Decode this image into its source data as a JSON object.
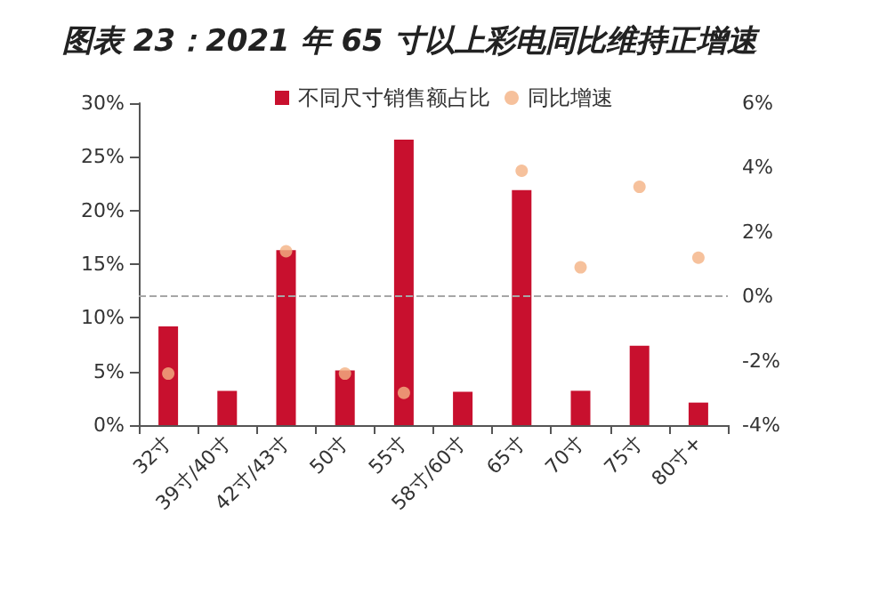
{
  "chart_data": {
    "type": "bar",
    "title": "图表 23：2021 年 65 寸以上彩电同比维持正增速",
    "categories": [
      "32寸",
      "39寸/40寸",
      "42寸/43寸",
      "50寸",
      "55寸",
      "58寸/60寸",
      "65寸",
      "70寸",
      "75寸",
      "80寸+"
    ],
    "series": [
      {
        "name": "不同尺寸销售额占比",
        "color": "#c8102e",
        "values": [
          9.2,
          3.2,
          16.3,
          5.1,
          26.6,
          3.1,
          21.9,
          3.2,
          7.4,
          2.1
        ]
      },
      {
        "name": "同比增速",
        "type": "scatter",
        "axis": "y2",
        "color": "#f4b183",
        "marker": "circle",
        "values": [
          -2.4,
          null,
          1.4,
          -2.4,
          -3.0,
          null,
          3.9,
          0.9,
          3.4,
          1.2
        ]
      }
    ],
    "ylim": [
      0,
      30
    ],
    "yticks": [
      {
        "value": 0,
        "label": "0%"
      },
      {
        "value": 5,
        "label": "5%"
      },
      {
        "value": 10,
        "label": "10%"
      },
      {
        "value": 15,
        "label": "15%"
      },
      {
        "value": 20,
        "label": "20%"
      },
      {
        "value": 25,
        "label": "25%"
      },
      {
        "value": 30,
        "label": "30%"
      }
    ],
    "y2lim": [
      -4,
      6
    ],
    "y2ticks": [
      {
        "value": -4,
        "label": "-4%"
      },
      {
        "value": -2,
        "label": "-2%"
      },
      {
        "value": 0,
        "label": "0%"
      },
      {
        "value": 2,
        "label": "2%"
      },
      {
        "value": 4,
        "label": "4%"
      },
      {
        "value": 6,
        "label": "6%"
      }
    ],
    "ref_lines": [
      {
        "axis": "y2",
        "value": 0,
        "color": "#a6a6a6",
        "line_style": "dashed"
      }
    ],
    "legend": "top",
    "grid": false
  }
}
